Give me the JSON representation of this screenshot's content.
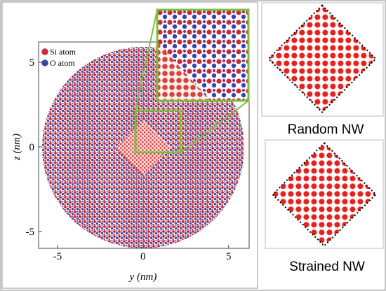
{
  "main_plot": {
    "xlabel": "y (nm)",
    "ylabel": "z (nm)",
    "xlim": [
      -6.1,
      6.2
    ],
    "ylim": [
      -6,
      6.2
    ],
    "xticks": [
      -5,
      0,
      5
    ],
    "yticks": [
      -5,
      0,
      5
    ],
    "legend": [
      {
        "name": "Si atom",
        "color": "#d8283a"
      },
      {
        "name": "O atom",
        "color": "#3a44b0"
      }
    ]
  },
  "panels": [
    {
      "label": "Random NW"
    },
    {
      "label": "Strained NW"
    }
  ]
}
